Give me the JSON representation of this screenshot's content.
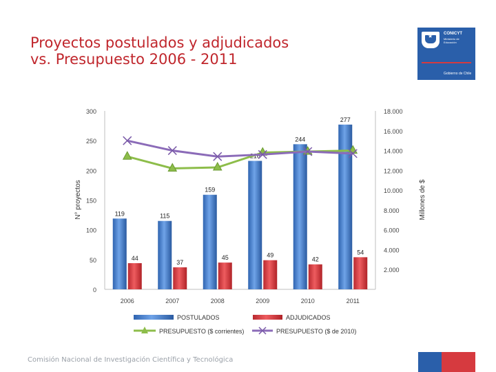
{
  "slide": {
    "title_line1": "Proyectos postulados y adjudicados",
    "title_line2": "vs. Presupuesto 2006 - 2011",
    "footer": "Comisión Nacional de Investigación Científica y Tecnológica"
  },
  "logo": {
    "org": "CONICYT",
    "sub": "Ministerio de Educación",
    "gob": "Gobierno de Chile"
  },
  "colors": {
    "title": "#c0262c",
    "postulados": "#3b78c8",
    "adjudicados": "#d63a3f",
    "presupuesto_corrientes": "#8dbd4a",
    "presupuesto_2010": "#8b6bb8",
    "brand_blue": "#2a5faa",
    "brand_red": "#d63a3f"
  },
  "chart_data": {
    "type": "bar",
    "categories": [
      "2006",
      "2007",
      "2008",
      "2009",
      "2010",
      "2011"
    ],
    "ylabel": "N° proyectos",
    "y2label": "Millones de $",
    "ylim": [
      0,
      300
    ],
    "y2lim": [
      0,
      18000
    ],
    "y_ticks": [
      "0",
      "50",
      "100",
      "150",
      "200",
      "250",
      "300"
    ],
    "y2_ticks": [
      "2.000",
      "4.000",
      "6.000",
      "8.000",
      "10.000",
      "12.000",
      "14.000",
      "16.000",
      "18.000"
    ],
    "series": [
      {
        "name": "POSTULADOS",
        "type": "bar",
        "values": [
          119,
          115,
          159,
          216,
          244,
          277
        ]
      },
      {
        "name": "ADJUDICADOS",
        "type": "bar",
        "values": [
          44,
          37,
          45,
          49,
          42,
          54
        ]
      },
      {
        "name": "PRESUPUESTO ($ corrientes)",
        "type": "line",
        "axis": "secondary",
        "values": [
          13400,
          12200,
          12300,
          13800,
          13900,
          14000
        ]
      },
      {
        "name": "PRESUPUESTO ($ de 2010)",
        "type": "line",
        "axis": "secondary",
        "values": [
          15000,
          14000,
          13400,
          13600,
          13900,
          13700
        ]
      }
    ]
  }
}
